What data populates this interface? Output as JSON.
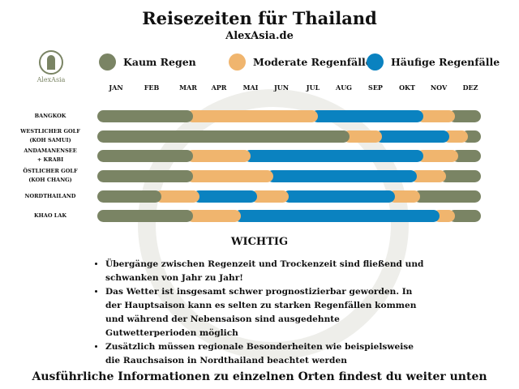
{
  "title": "Reisezeiten für Thailand",
  "subtitle": "AlexAsia.de",
  "logo_text": "AlexAsia",
  "chart_data": {
    "type": "timeline-bar",
    "title": "Reisezeiten für Thailand",
    "months": [
      "JAN",
      "FEB",
      "MAR",
      "APR",
      "MAI",
      "JUN",
      "JUL",
      "AUG",
      "SEP",
      "OKT",
      "NOV",
      "DEZ"
    ],
    "legend": [
      {
        "key": "kaum",
        "label": "Kaum Regen",
        "color": "#7a8464"
      },
      {
        "key": "moderat",
        "label": "Moderate Regenfälle",
        "color": "#f0b56e"
      },
      {
        "key": "haeufig",
        "label": "Häufige Regenfälle",
        "color": "#0a82c0"
      }
    ],
    "legend_position": "top",
    "rows": [
      {
        "label": [
          "BANGKOK"
        ],
        "segments": [
          [
            "kaum",
            0,
            3
          ],
          [
            "moderat",
            3,
            6.9
          ],
          [
            "haeufig",
            6.9,
            10.2
          ],
          [
            "moderat",
            10.2,
            11.2
          ],
          [
            "kaum",
            11.2,
            12
          ]
        ]
      },
      {
        "label": [
          "WESTLICHER GOLF",
          "(KOH SAMUI)"
        ],
        "segments": [
          [
            "kaum",
            0,
            7.9
          ],
          [
            "moderat",
            7.9,
            8.9
          ],
          [
            "haeufig",
            8.9,
            11
          ],
          [
            "moderat",
            11,
            11.6
          ],
          [
            "kaum",
            11.6,
            12
          ]
        ]
      },
      {
        "label": [
          "ANDAMANENSEE",
          "+ KRABI"
        ],
        "segments": [
          [
            "kaum",
            0,
            3
          ],
          [
            "moderat",
            3,
            4.8
          ],
          [
            "haeufig",
            4.8,
            10.2
          ],
          [
            "moderat",
            10.2,
            11.3
          ],
          [
            "kaum",
            11.3,
            12
          ]
        ]
      },
      {
        "label": [
          "ÖSTLICHER GOLF",
          "(KOH CHANG)"
        ],
        "segments": [
          [
            "kaum",
            0,
            3
          ],
          [
            "moderat",
            3,
            5.5
          ],
          [
            "haeufig",
            5.5,
            10
          ],
          [
            "moderat",
            10,
            10.9
          ],
          [
            "kaum",
            10.9,
            12
          ]
        ]
      },
      {
        "label": [
          "NORDTHAILAND"
        ],
        "segments": [
          [
            "kaum",
            0,
            2
          ],
          [
            "moderat",
            2,
            3.2
          ],
          [
            "haeufig",
            3.2,
            5
          ],
          [
            "moderat",
            5,
            6
          ],
          [
            "haeufig",
            6,
            9.3
          ],
          [
            "moderat",
            9.3,
            10.1
          ],
          [
            "kaum",
            10.1,
            12
          ]
        ]
      },
      {
        "label": [
          "KHAO LAK"
        ],
        "segments": [
          [
            "kaum",
            0,
            3
          ],
          [
            "moderat",
            3,
            4.5
          ],
          [
            "haeufig",
            4.5,
            10.7
          ],
          [
            "moderat",
            10.7,
            11.2
          ],
          [
            "kaum",
            11.2,
            12
          ]
        ]
      }
    ]
  },
  "wichtig": "WICHTIG",
  "notes": [
    "Übergänge zwischen Regenzeit und Trockenzeit sind fließend und schwanken von Jahr zu Jahr!",
    "Das Wetter ist insgesamt schwer prognostizierbar geworden. In der Hauptsaison kann es selten zu starken Regenfällen kommen und während der Nebensaison sind ausgedehnte Gutwetterperioden möglich",
    "Zusätzlich müssen regionale Besonderheiten wie beispielsweise die Rauchsaison in Nordthailand beachtet werden"
  ],
  "footer": "Ausführliche Informationen zu einzelnen Orten findest du weiter unten"
}
